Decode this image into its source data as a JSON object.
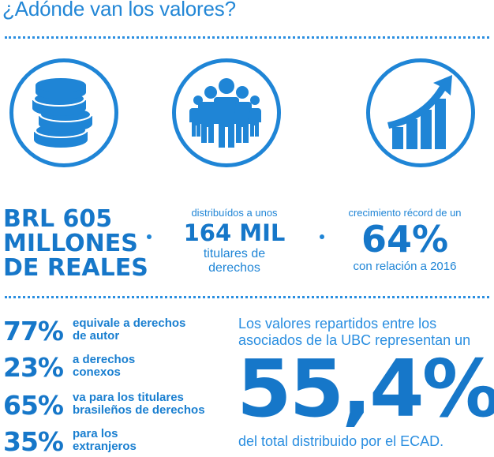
{
  "title": "¿Adónde van los valores?",
  "icons": [
    "coins-icon",
    "people-group-icon",
    "growth-chart-icon"
  ],
  "stats": {
    "amount": {
      "line1": "BRL 605",
      "line2": "MILLONES",
      "line3": "DE REALES"
    },
    "holders": {
      "prefix": "distribuídos a unos",
      "value": "164 MIL",
      "suffix": "titulares de derechos"
    },
    "growth": {
      "prefix": "crecimiento récord de un",
      "value": "64%",
      "suffix": "con relación a 2016"
    }
  },
  "breakdown": [
    {
      "pct": "77%",
      "text": "equivale a derechos de autor"
    },
    {
      "pct": "23%",
      "text": "a derechos conexos"
    },
    {
      "pct": "65%",
      "text": "va para los titulares brasileños de derechos"
    },
    {
      "pct": "35%",
      "text": "para los extranjeros"
    }
  ],
  "share": {
    "intro": "Los valores repartidos entre los asociados de la UBC representan un",
    "value": "55,4%",
    "outro": "del total distribuido por el ECAD."
  },
  "colors": {
    "primary": "#1f85d6",
    "dark": "#1677c9"
  }
}
